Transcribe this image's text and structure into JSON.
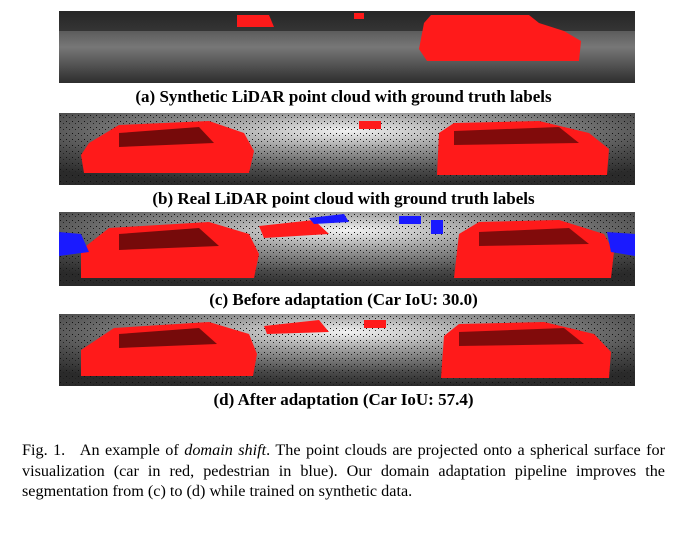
{
  "figure": {
    "panels": [
      {
        "id": "a",
        "caption": "(a) Synthetic LiDAR point cloud with ground truth labels"
      },
      {
        "id": "b",
        "caption": "(b) Real LiDAR point cloud with ground truth labels"
      },
      {
        "id": "c",
        "caption": "(c) Before adaptation (Car IoU: 30.0)"
      },
      {
        "id": "d",
        "caption": "(d) After adaptation (Car IoU: 57.4)"
      }
    ],
    "legend_colors": {
      "car": "#ff1a1a",
      "pedestrian": "#1a1aff",
      "background": "#555555"
    }
  },
  "caption": {
    "label": "Fig. 1.",
    "text_before": "An example of ",
    "emphasis": "domain shift",
    "text_after": ". The point clouds are projected onto a spherical surface for visualization (car in red, pedestrian in blue). Our domain adaptation pipeline improves the segmentation from (c) to (d) while trained on synthetic data."
  }
}
